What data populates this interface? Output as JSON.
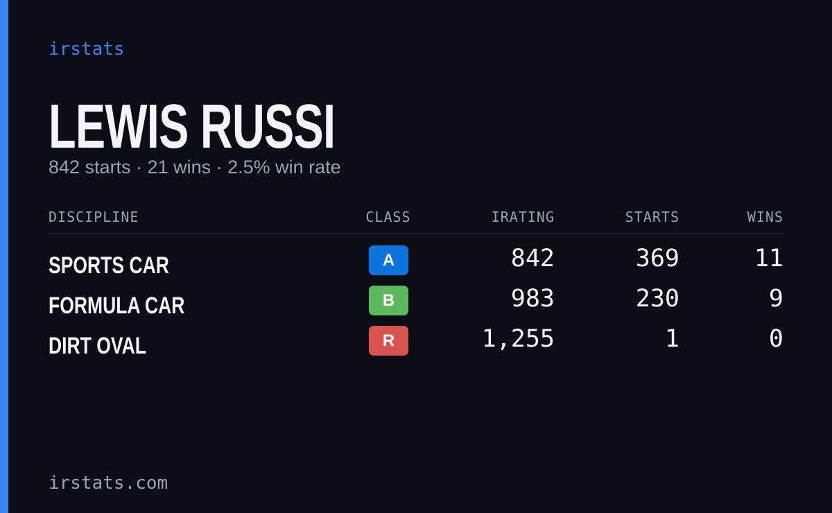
{
  "brand": "irstats",
  "driver": {
    "name": "LEWIS RUSSI",
    "summary": "842 starts · 21 wins · 2.5% win rate"
  },
  "table": {
    "headers": [
      "DISCIPLINE",
      "CLASS",
      "IRATING",
      "STARTS",
      "WINS"
    ],
    "rows": [
      {
        "discipline": "SPORTS CAR",
        "class": "A",
        "class_color": "#0b74de",
        "irating": "842",
        "starts": "369",
        "wins": "11"
      },
      {
        "discipline": "FORMULA CAR",
        "class": "B",
        "class_color": "#5cb85c",
        "irating": "983",
        "starts": "230",
        "wins": "9"
      },
      {
        "discipline": "DIRT OVAL",
        "class": "R",
        "class_color": "#d9534f",
        "irating": "1,255",
        "starts": "1",
        "wins": "0"
      }
    ]
  },
  "footer": "irstats.com"
}
